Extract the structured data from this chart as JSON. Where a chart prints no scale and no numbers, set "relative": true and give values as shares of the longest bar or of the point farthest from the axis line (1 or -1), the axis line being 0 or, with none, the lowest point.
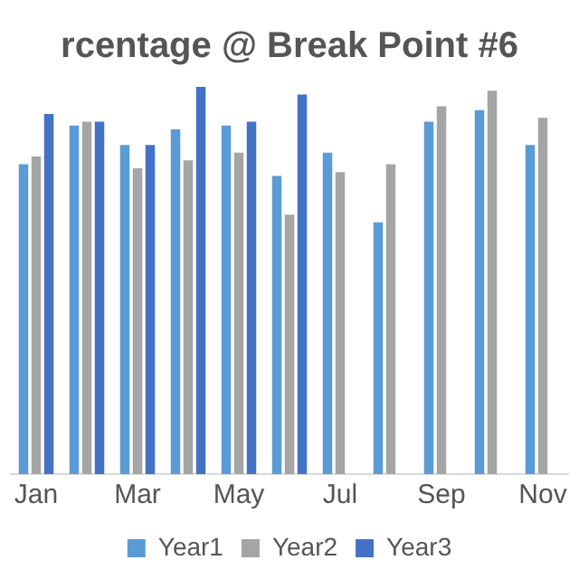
{
  "chart_data": {
    "type": "bar",
    "title": "rcentage @ Break Point #6",
    "relative": true,
    "legend": "bottom",
    "categories": [
      "Jan",
      null,
      "Mar",
      null,
      "May",
      null,
      "Jul",
      null,
      "Sep",
      null,
      "Nov"
    ],
    "series": [
      {
        "name": "Year1",
        "color": "#5b9bd5",
        "values": [
          0.8,
          0.9,
          0.85,
          0.89,
          0.9,
          0.77,
          0.83,
          0.65,
          0.91,
          0.94,
          0.85
        ]
      },
      {
        "name": "Year2",
        "color": "#a5a5a5",
        "values": [
          0.82,
          0.91,
          0.79,
          0.81,
          0.83,
          0.67,
          0.78,
          0.8,
          0.95,
          0.99,
          0.92
        ]
      },
      {
        "name": "Year3",
        "color": "#4472c4",
        "values": [
          0.93,
          0.91,
          0.85,
          1,
          0.91,
          0.98,
          null,
          null,
          null,
          null,
          null
        ]
      }
    ]
  }
}
